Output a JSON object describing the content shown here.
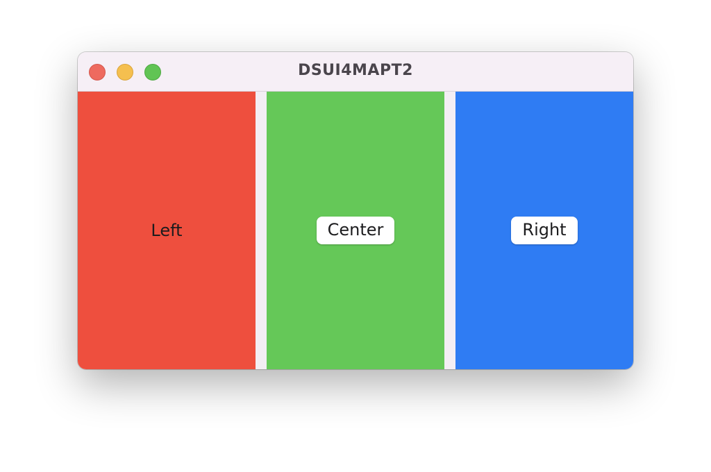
{
  "window": {
    "title": "DSUI4MAPT2"
  },
  "panels": [
    {
      "label": "Left",
      "color": "#ee4f3e"
    },
    {
      "label": "Center",
      "color": "#65c858"
    },
    {
      "label": "Right",
      "color": "#2f7cf3"
    }
  ],
  "divider_color": "#f3eef4",
  "controls": {
    "close_color": "#ee6a5f",
    "minimize_color": "#f5bf4f",
    "zoom_color": "#61c454"
  }
}
